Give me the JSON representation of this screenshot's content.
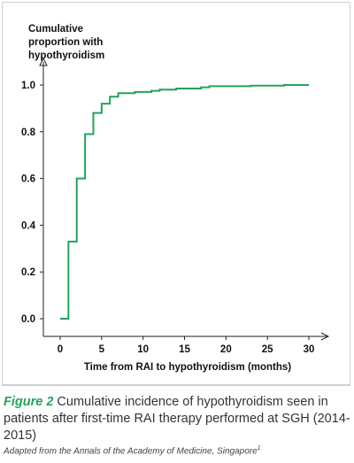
{
  "chart_data": {
    "type": "line",
    "step": true,
    "ylabel_lines": [
      "Cumulative",
      "proportion with",
      "hypothyroidism"
    ],
    "xlabel": "Time from RAI to hypothyroidism (months)",
    "xlim": [
      0,
      30
    ],
    "ylim": [
      0,
      1.0
    ],
    "xticks": [
      "0",
      "5",
      "10",
      "15",
      "20",
      "25",
      "30"
    ],
    "yticks": [
      "0.0",
      "0.2",
      "0.4",
      "0.6",
      "0.8",
      "1.0"
    ],
    "grid": false,
    "series": [
      {
        "x": [
          0,
          1,
          2,
          3,
          4,
          5,
          6,
          7,
          8,
          9,
          10,
          11,
          12,
          13,
          14,
          15,
          17,
          18,
          20,
          23,
          27,
          30
        ],
        "y": [
          0.0,
          0.33,
          0.6,
          0.79,
          0.88,
          0.92,
          0.95,
          0.965,
          0.965,
          0.97,
          0.97,
          0.975,
          0.98,
          0.98,
          0.985,
          0.985,
          0.99,
          0.995,
          0.995,
          0.997,
          1.0,
          1.0
        ],
        "color": "#22a35a"
      }
    ]
  },
  "caption": {
    "figure_label": "Figure 2",
    "text": " Cumulative incidence of hypothyroidism seen in patients after first-time RAI therapy performed at SGH (2014-2015)"
  },
  "source": {
    "text": "Adapted from the Annals of the Academy of Medicine, Singapore",
    "superscript": "1"
  }
}
